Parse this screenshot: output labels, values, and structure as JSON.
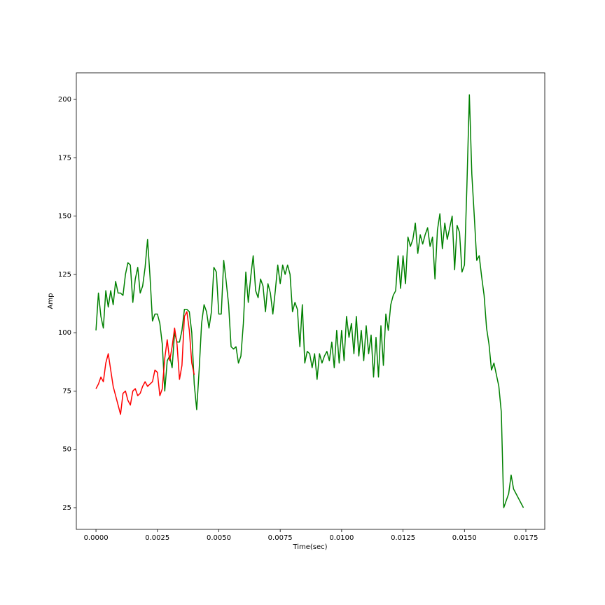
{
  "chart_data": {
    "type": "line",
    "xlabel": "Time(sec)",
    "ylabel": "Amp",
    "xlim": [
      -0.0008,
      0.01827
    ],
    "ylim": [
      15.7,
      211.4
    ],
    "xticks": [
      {
        "value": 0,
        "label": "0.0000"
      },
      {
        "value": 0.0025,
        "label": "0.0025"
      },
      {
        "value": 0.005,
        "label": "0.0050"
      },
      {
        "value": 0.0075,
        "label": "0.0075"
      },
      {
        "value": 0.01,
        "label": "0.0100"
      },
      {
        "value": 0.0125,
        "label": "0.0125"
      },
      {
        "value": 0.015,
        "label": "0.0150"
      },
      {
        "value": 0.0175,
        "label": "0.0175"
      }
    ],
    "yticks": [
      25,
      50,
      75,
      100,
      125,
      150,
      175,
      200
    ],
    "series": [
      {
        "color": "#008000",
        "x": [
          0,
          0.0001,
          0.0002,
          0.0003,
          0.0004,
          0.0005,
          0.0006,
          0.0007,
          0.0008,
          0.0009,
          0.001,
          0.0011,
          0.0012,
          0.0013,
          0.0014,
          0.0015,
          0.0016,
          0.0017,
          0.0018,
          0.0019,
          0.002,
          0.0021,
          0.0022,
          0.0023,
          0.0024,
          0.0025,
          0.0026,
          0.0027,
          0.0028,
          0.0029,
          0.003,
          0.0031,
          0.0032,
          0.0033,
          0.0034,
          0.0035,
          0.0036,
          0.0037,
          0.0038,
          0.0039,
          0.004,
          0.0041,
          0.0042,
          0.0043,
          0.0044,
          0.0045,
          0.0046,
          0.0047,
          0.0048,
          0.0049,
          0.005,
          0.0051,
          0.0052,
          0.0053,
          0.0054,
          0.0055,
          0.0056,
          0.0057,
          0.0058,
          0.0059,
          0.006,
          0.0061,
          0.0062,
          0.0063,
          0.0064,
          0.0065,
          0.0066,
          0.0067,
          0.0068,
          0.0069,
          0.007,
          0.0071,
          0.0072,
          0.0073,
          0.0074,
          0.0075,
          0.0076,
          0.0077,
          0.0078,
          0.0079,
          0.008,
          0.0081,
          0.0082,
          0.0083,
          0.0084,
          0.0085,
          0.0086,
          0.0087,
          0.0088,
          0.0089,
          0.009,
          0.0091,
          0.0092,
          0.0093,
          0.0094,
          0.0095,
          0.0096,
          0.0097,
          0.0098,
          0.0099,
          0.01,
          0.0101,
          0.0102,
          0.0103,
          0.0104,
          0.0105,
          0.0106,
          0.0107,
          0.0108,
          0.0109,
          0.011,
          0.0111,
          0.0112,
          0.0113,
          0.0114,
          0.0115,
          0.0116,
          0.0117,
          0.0118,
          0.0119,
          0.012,
          0.0121,
          0.0122,
          0.0123,
          0.0124,
          0.0125,
          0.0126,
          0.0127,
          0.0128,
          0.0129,
          0.013,
          0.0131,
          0.0132,
          0.0133,
          0.0134,
          0.0135,
          0.0136,
          0.0137,
          0.0138,
          0.0139,
          0.014,
          0.0141,
          0.0142,
          0.0143,
          0.0144,
          0.0145,
          0.0146,
          0.0147,
          0.0148,
          0.0149,
          0.015,
          0.0151,
          0.0152,
          0.0153,
          0.0154,
          0.0155,
          0.0156,
          0.0157,
          0.0158,
          0.0159,
          0.016,
          0.0161,
          0.0162,
          0.0163,
          0.0164,
          0.0165,
          0.0166,
          0.0167,
          0.0168,
          0.0169,
          0.017,
          0.0171,
          0.0172,
          0.0173,
          0.0174
        ],
        "values": [
          101,
          117,
          107,
          102,
          118,
          111,
          118,
          112,
          122,
          117,
          117,
          116,
          125,
          130,
          129,
          113,
          123,
          128,
          117,
          120,
          128,
          140,
          124,
          105,
          108,
          108,
          104,
          95,
          75,
          88,
          90,
          85,
          100,
          96,
          96,
          101,
          110,
          110,
          109,
          100,
          78,
          67,
          84,
          104,
          112,
          109,
          102,
          109,
          128,
          126,
          108,
          108,
          131,
          122,
          112,
          94,
          93,
          94,
          87,
          90,
          104,
          126,
          113,
          124,
          133,
          118,
          115,
          123,
          120,
          109,
          121,
          117,
          108,
          118,
          129,
          121,
          129,
          125,
          129,
          125,
          109,
          113,
          110,
          94,
          112,
          87,
          92,
          91,
          85,
          91,
          80,
          91,
          87,
          90,
          92,
          88,
          96,
          85,
          101,
          87,
          101,
          88,
          107,
          98,
          104,
          91,
          107,
          90,
          101,
          88,
          103,
          91,
          99,
          81,
          98,
          81,
          103,
          86,
          108,
          101,
          112,
          116,
          118,
          133,
          119,
          133,
          121,
          141,
          137,
          140,
          147,
          134,
          142,
          138,
          142,
          145,
          137,
          141,
          123,
          144,
          151,
          136,
          147,
          140,
          145,
          150,
          127,
          146,
          143,
          126,
          129,
          163,
          202,
          168,
          150,
          131,
          133,
          124,
          116,
          102,
          95,
          84,
          87,
          82,
          77,
          66,
          25,
          28,
          31,
          39,
          33,
          31,
          29,
          27,
          25
        ]
      },
      {
        "color": "#ff0000",
        "x": [
          0,
          0.0001,
          0.0002,
          0.0003,
          0.0004,
          0.0005,
          0.0006,
          0.0007,
          0.0008,
          0.0009,
          0.001,
          0.0011,
          0.0012,
          0.0013,
          0.0014,
          0.0015,
          0.0016,
          0.0017,
          0.0018,
          0.0019,
          0.002,
          0.0021,
          0.0022,
          0.0023,
          0.0024,
          0.0025,
          0.0026,
          0.0027,
          0.0028,
          0.0029,
          0.003,
          0.0031,
          0.0032,
          0.0033,
          0.0034,
          0.0035,
          0.0036,
          0.0037,
          0.0038,
          0.0039,
          0.004
        ],
        "values": [
          76,
          78,
          81,
          79,
          87,
          91,
          84,
          77,
          73,
          69,
          65,
          74,
          75,
          71,
          69,
          75,
          76,
          73,
          74,
          77,
          79,
          77,
          78,
          79,
          84,
          83,
          73,
          76,
          89,
          97,
          88,
          94,
          102,
          95,
          80,
          86,
          107,
          109,
          101,
          87,
          82
        ]
      }
    ]
  }
}
